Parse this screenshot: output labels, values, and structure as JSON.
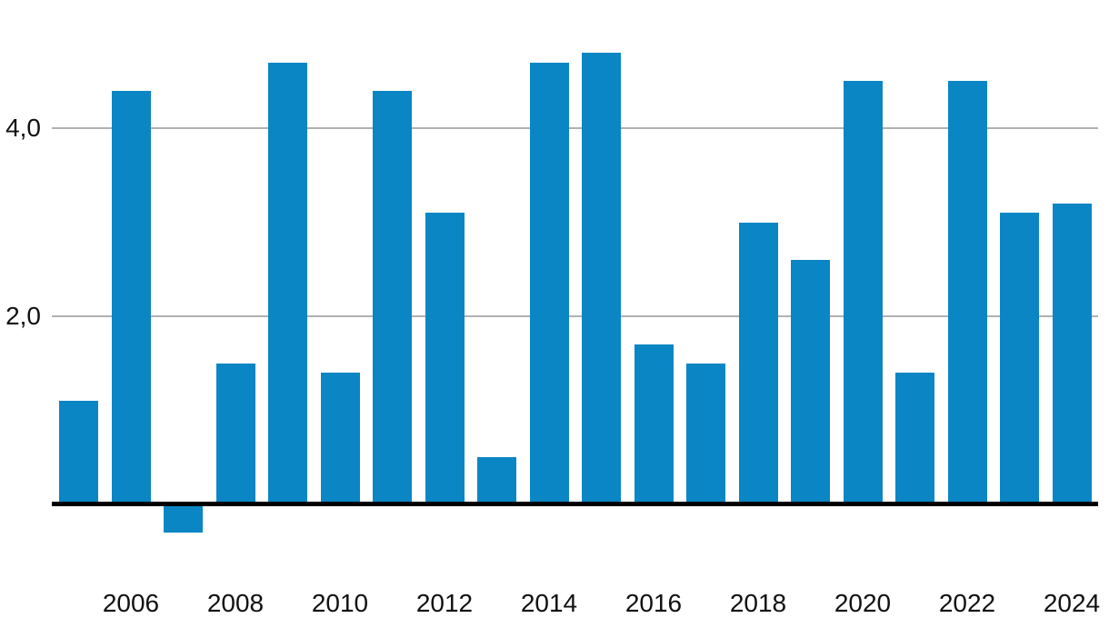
{
  "chart_data": {
    "type": "bar",
    "x": [
      2005,
      2006,
      2007,
      2008,
      2009,
      2010,
      2011,
      2012,
      2013,
      2014,
      2015,
      2016,
      2017,
      2018,
      2019,
      2020,
      2021,
      2022,
      2023,
      2024
    ],
    "values": [
      1.1,
      4.4,
      -0.3,
      1.5,
      4.7,
      1.4,
      4.4,
      3.1,
      0.5,
      4.7,
      4.8,
      1.7,
      1.5,
      3.0,
      2.6,
      4.5,
      1.4,
      4.5,
      3.1,
      3.2
    ],
    "series_name": "",
    "title": "",
    "xlabel": "",
    "ylabel": "",
    "ylim": [
      -0.6,
      5.0
    ],
    "grid": true,
    "legend": "none",
    "y_ticks": [
      {
        "value": 2.0,
        "label": "2,0"
      },
      {
        "value": 4.0,
        "label": "4,0"
      }
    ],
    "x_ticks": [
      {
        "year": 2006,
        "label": "2006"
      },
      {
        "year": 2008,
        "label": "2008"
      },
      {
        "year": 2010,
        "label": "2010"
      },
      {
        "year": 2012,
        "label": "2012"
      },
      {
        "year": 2014,
        "label": "2014"
      },
      {
        "year": 2016,
        "label": "2016"
      },
      {
        "year": 2018,
        "label": "2018"
      },
      {
        "year": 2020,
        "label": "2020"
      },
      {
        "year": 2022,
        "label": "2022"
      },
      {
        "year": 2024,
        "label": "2024"
      }
    ],
    "colors": {
      "bar": "#0b86c4",
      "gridline": "#b1b1b1",
      "zero_line": "#000000",
      "tick_text": "#111111",
      "background": "#ffffff"
    }
  }
}
